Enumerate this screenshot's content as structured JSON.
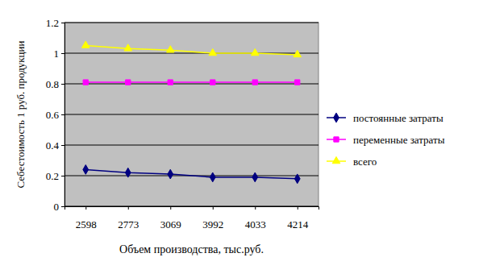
{
  "chart_data": {
    "type": "line",
    "x_label": "Объем производства, тыс.руб.",
    "y_label": "Себестоимость 1 руб. продукции",
    "categories": [
      "2598",
      "2773",
      "3069",
      "3992",
      "4033",
      "4214"
    ],
    "series": [
      {
        "name": "постоянные затраты",
        "color": "#000080",
        "marker": "diamond",
        "values": [
          0.24,
          0.22,
          0.21,
          0.19,
          0.19,
          0.18
        ]
      },
      {
        "name": "переменные затраты",
        "color": "#ff00ff",
        "marker": "square",
        "values": [
          0.81,
          0.81,
          0.81,
          0.81,
          0.81,
          0.81
        ]
      },
      {
        "name": "всего",
        "color": "#ffff00",
        "marker": "triangle",
        "values": [
          1.05,
          1.03,
          1.02,
          1.0,
          1.0,
          0.99
        ]
      }
    ],
    "ylim": [
      0,
      1.2
    ],
    "yticks": [
      0,
      0.2,
      0.4,
      0.6,
      0.8,
      1,
      1.2
    ],
    "grid": true,
    "legend": "right"
  }
}
